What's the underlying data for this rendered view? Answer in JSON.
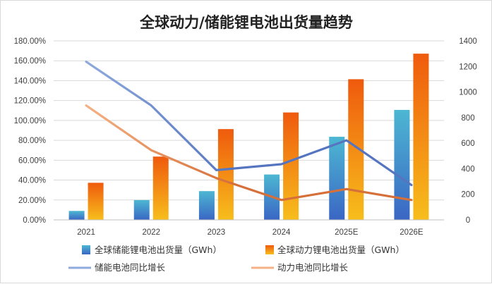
{
  "chart_data": {
    "type": "bar+line",
    "title": "全球动力/储能锂电池出货量趋势",
    "categories": [
      "2021",
      "2022",
      "2023",
      "2024",
      "2025E",
      "2026E"
    ],
    "bar_series": [
      {
        "name": "全球储能锂电池出货量（GWh）",
        "axis": "right",
        "values": [
          70,
          155,
          225,
          355,
          650,
          860
        ]
      },
      {
        "name": "全球动力锂电池出货量（GWh）",
        "axis": "right",
        "values": [
          290,
          495,
          710,
          840,
          1100,
          1300
        ]
      }
    ],
    "line_series": [
      {
        "name": "储能电池同比增长",
        "axis": "left",
        "values": [
          159,
          115,
          50,
          56,
          80,
          35
        ]
      },
      {
        "name": "动力电池同比增长",
        "axis": "left",
        "values": [
          115,
          70,
          42,
          20,
          31,
          20
        ]
      }
    ],
    "y_left": {
      "min": 0,
      "max": 180,
      "step": 20,
      "ticks": [
        "0.00%",
        "20.00%",
        "40.00%",
        "60.00%",
        "80.00%",
        "100.00%",
        "120.00%",
        "140.00%",
        "160.00%",
        "180.00%"
      ]
    },
    "y_right": {
      "min": 0,
      "max": 1400,
      "step": 200,
      "ticks": [
        "0",
        "200",
        "400",
        "600",
        "800",
        "1000",
        "1200",
        "1400"
      ]
    },
    "colors": {
      "storage_bar_top": "#4db7d2",
      "storage_bar_bottom": "#3a66c4",
      "power_bar_top": "#ef5a0d",
      "power_bar_bottom": "#f7be1c",
      "storage_line": "#8faadc",
      "storage_line_dark": "#5575c0",
      "power_line": "#f4b183",
      "power_line_dark": "#d6703a",
      "grid": "#d9d9d9"
    },
    "legend": {
      "storage_bar": "全球储能锂电池出货量（GWh）",
      "power_bar": "全球动力锂电池出货量（GWh）",
      "storage_line": "储能电池同比增长",
      "power_line": "动力电池同比增长"
    }
  }
}
